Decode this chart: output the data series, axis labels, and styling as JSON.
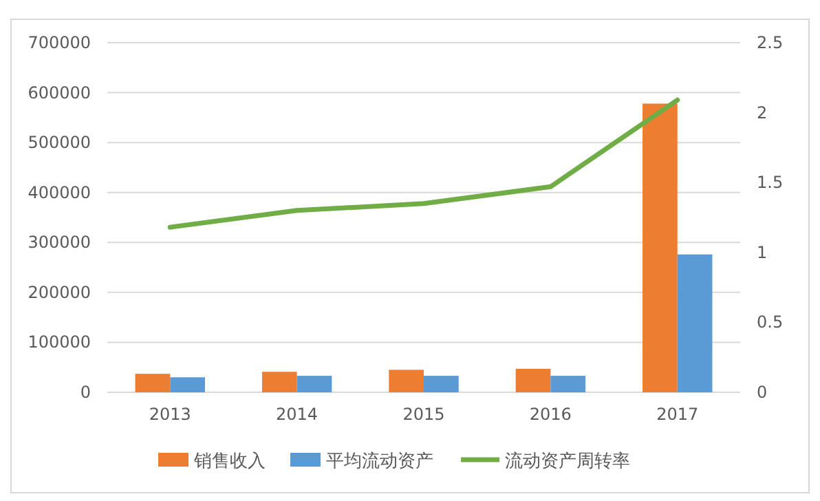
{
  "chart_data": {
    "type": "bar",
    "categories": [
      "2013",
      "2014",
      "2015",
      "2016",
      "2017"
    ],
    "series": [
      {
        "name": "销售收入",
        "color": "#ed7d31",
        "values": [
          37000,
          41000,
          45000,
          47000,
          578000
        ]
      },
      {
        "name": "平均流动资产",
        "color": "#5b9bd5",
        "values": [
          30000,
          33000,
          33000,
          33000,
          276000
        ]
      },
      {
        "name": "流动资产周转率",
        "type": "line",
        "axis": "y2",
        "color": "#70ad47",
        "values": [
          1.18,
          1.3,
          1.35,
          1.47,
          2.09
        ]
      }
    ],
    "ylim": [
      0,
      700000
    ],
    "yticks": [
      0,
      100000,
      200000,
      300000,
      400000,
      500000,
      600000,
      700000
    ],
    "y2lim": [
      0,
      2.5
    ],
    "y2ticks": [
      0,
      0.5,
      1,
      1.5,
      2,
      2.5
    ],
    "grid": "y",
    "legend": "bottom",
    "marker": "none",
    "line_style": "solid"
  }
}
